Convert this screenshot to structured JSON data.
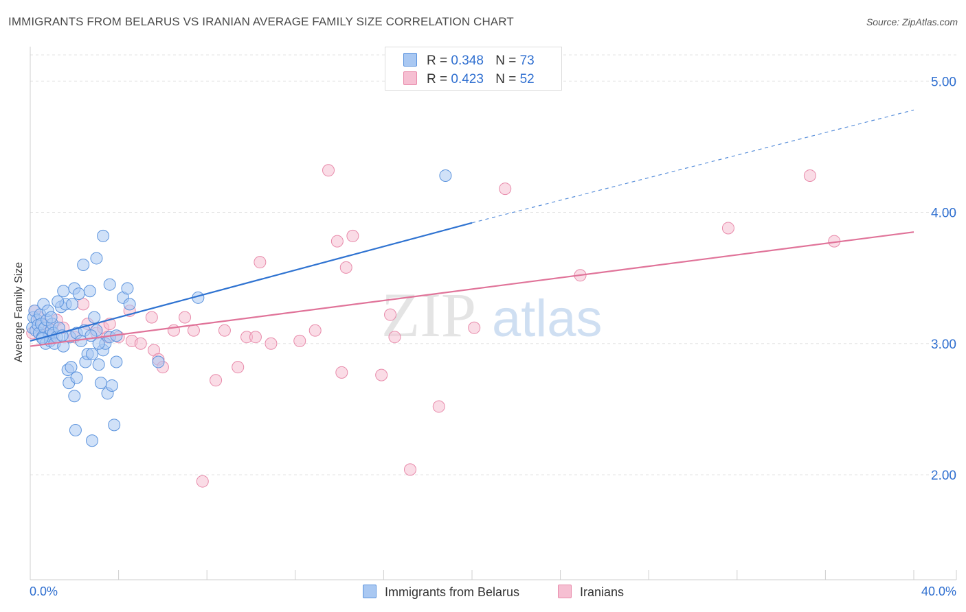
{
  "title": "IMMIGRANTS FROM BELARUS VS IRANIAN AVERAGE FAMILY SIZE CORRELATION CHART",
  "source": "Source: ZipAtlas.com",
  "watermark": {
    "zip": "ZIP",
    "atlas": "atlas"
  },
  "legend": {
    "belarus": {
      "r_label": "R =",
      "r_value": "0.348",
      "n_label": "N =",
      "n_value": "73"
    },
    "iranians": {
      "r_label": "R =",
      "r_value": "0.423",
      "n_label": "N =",
      "n_value": "52"
    }
  },
  "colors": {
    "belarus_fill": "#a9c8f2",
    "belarus_stroke": "#5b93dd",
    "belarus_line": "#2f73d1",
    "iranians_fill": "#f6bfd2",
    "iranians_stroke": "#e88aaa",
    "iranians_line": "#e07399",
    "accent_text": "#2f6fd0"
  },
  "chart_data": {
    "type": "scatter",
    "title": "IMMIGRANTS FROM BELARUS VS IRANIAN AVERAGE FAMILY SIZE CORRELATION CHART",
    "xlabel": "",
    "ylabel": "Average Family Size",
    "xlim": [
      0,
      40
    ],
    "ylim": [
      1.2,
      5.2
    ],
    "x_tick_labels": [
      "0.0%",
      "40.0%"
    ],
    "y_ticks": [
      2.0,
      3.0,
      4.0,
      5.0
    ],
    "y_tick_labels": [
      "2.00",
      "3.00",
      "4.00",
      "5.00"
    ],
    "grid": true,
    "legend_position": "top-center",
    "series": [
      {
        "name": "Immigrants from Belarus",
        "points": [
          [
            0.1,
            3.12
          ],
          [
            0.15,
            3.2
          ],
          [
            0.2,
            3.25
          ],
          [
            0.25,
            3.1
          ],
          [
            0.3,
            3.18
          ],
          [
            0.35,
            3.14
          ],
          [
            0.4,
            3.08
          ],
          [
            0.45,
            3.22
          ],
          [
            0.5,
            3.15
          ],
          [
            0.55,
            3.05
          ],
          [
            0.6,
            3.3
          ],
          [
            0.65,
            3.12
          ],
          [
            0.7,
            3.0
          ],
          [
            0.75,
            3.18
          ],
          [
            0.8,
            3.25
          ],
          [
            0.85,
            3.06
          ],
          [
            0.9,
            3.02
          ],
          [
            0.95,
            3.1
          ],
          [
            1.0,
            3.15
          ],
          [
            1.05,
            3.08
          ],
          [
            1.1,
            3.0
          ],
          [
            1.2,
            3.05
          ],
          [
            1.3,
            3.12
          ],
          [
            1.4,
            3.28
          ],
          [
            1.5,
            3.4
          ],
          [
            1.6,
            3.3
          ],
          [
            1.7,
            2.8
          ],
          [
            1.75,
            2.7
          ],
          [
            1.8,
            3.05
          ],
          [
            1.9,
            3.3
          ],
          [
            2.0,
            3.42
          ],
          [
            2.1,
            3.08
          ],
          [
            2.2,
            3.38
          ],
          [
            2.3,
            3.02
          ],
          [
            2.4,
            3.6
          ],
          [
            2.5,
            2.86
          ],
          [
            2.6,
            2.92
          ],
          [
            2.7,
            3.4
          ],
          [
            2.8,
            2.92
          ],
          [
            2.9,
            3.2
          ],
          [
            3.0,
            3.1
          ],
          [
            3.1,
            2.84
          ],
          [
            3.2,
            2.7
          ],
          [
            3.3,
            2.95
          ],
          [
            3.4,
            3.0
          ],
          [
            3.5,
            2.62
          ],
          [
            3.6,
            3.05
          ],
          [
            2.1,
            2.74
          ],
          [
            2.0,
            2.6
          ],
          [
            1.5,
            2.98
          ],
          [
            2.05,
            2.34
          ],
          [
            2.8,
            2.26
          ],
          [
            3.0,
            3.65
          ],
          [
            3.3,
            3.82
          ],
          [
            3.6,
            3.45
          ],
          [
            3.9,
            3.06
          ],
          [
            4.2,
            3.35
          ],
          [
            4.5,
            3.3
          ],
          [
            4.4,
            3.42
          ],
          [
            3.7,
            2.68
          ],
          [
            3.8,
            2.38
          ],
          [
            3.9,
            2.86
          ],
          [
            5.8,
            2.86
          ],
          [
            7.6,
            3.35
          ],
          [
            18.8,
            4.28
          ],
          [
            1.85,
            2.82
          ],
          [
            0.55,
            3.04
          ],
          [
            0.95,
            3.2
          ],
          [
            1.25,
            3.32
          ],
          [
            2.45,
            3.1
          ],
          [
            3.1,
            3.0
          ],
          [
            2.75,
            3.06
          ],
          [
            1.45,
            3.06
          ]
        ]
      },
      {
        "name": "Iranians",
        "points": [
          [
            0.2,
            3.25
          ],
          [
            0.4,
            3.2
          ],
          [
            0.6,
            3.15
          ],
          [
            0.8,
            3.1
          ],
          [
            1.0,
            3.05
          ],
          [
            1.2,
            3.18
          ],
          [
            1.5,
            3.12
          ],
          [
            2.0,
            3.05
          ],
          [
            2.4,
            3.3
          ],
          [
            2.6,
            3.15
          ],
          [
            3.0,
            3.08
          ],
          [
            3.3,
            3.12
          ],
          [
            3.5,
            3.05
          ],
          [
            3.6,
            3.15
          ],
          [
            4.0,
            3.05
          ],
          [
            4.5,
            3.25
          ],
          [
            4.6,
            3.02
          ],
          [
            5.0,
            3.0
          ],
          [
            5.5,
            3.2
          ],
          [
            5.6,
            2.95
          ],
          [
            5.8,
            2.88
          ],
          [
            6.0,
            2.82
          ],
          [
            6.5,
            3.1
          ],
          [
            7.0,
            3.2
          ],
          [
            7.4,
            3.1
          ],
          [
            7.8,
            1.95
          ],
          [
            8.4,
            2.72
          ],
          [
            8.8,
            3.1
          ],
          [
            9.4,
            2.82
          ],
          [
            9.8,
            3.05
          ],
          [
            10.2,
            3.05
          ],
          [
            10.4,
            3.62
          ],
          [
            10.9,
            3.0
          ],
          [
            12.2,
            3.02
          ],
          [
            12.9,
            3.1
          ],
          [
            13.5,
            4.32
          ],
          [
            13.9,
            3.78
          ],
          [
            14.3,
            3.58
          ],
          [
            14.6,
            3.82
          ],
          [
            15.9,
            2.76
          ],
          [
            16.3,
            3.22
          ],
          [
            16.5,
            3.05
          ],
          [
            17.2,
            2.04
          ],
          [
            18.5,
            2.52
          ],
          [
            20.1,
            3.12
          ],
          [
            21.5,
            4.18
          ],
          [
            24.9,
            3.52
          ],
          [
            31.6,
            3.88
          ],
          [
            35.3,
            4.28
          ],
          [
            36.4,
            3.78
          ],
          [
            0.1,
            3.08
          ],
          [
            14.1,
            2.78
          ]
        ]
      }
    ],
    "trend_lines": [
      {
        "series": "Immigrants from Belarus",
        "solid": [
          [
            0,
            3.02
          ],
          [
            20,
            3.92
          ]
        ],
        "dashed": [
          [
            20,
            3.92
          ],
          [
            40,
            4.78
          ]
        ]
      },
      {
        "series": "Iranians",
        "solid": [
          [
            0,
            2.98
          ],
          [
            40,
            3.85
          ]
        ]
      }
    ]
  }
}
